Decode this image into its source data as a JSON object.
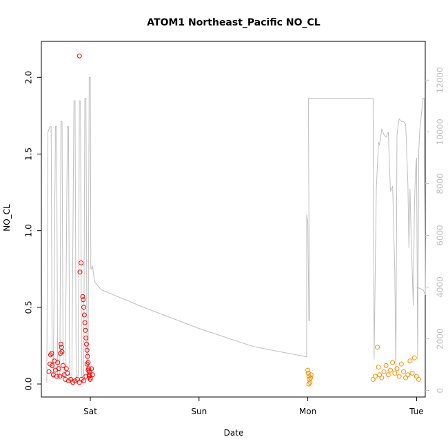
{
  "chart_data": {
    "type": "scatter",
    "title": "ATOM1 Northeast_Pacific NO_CL",
    "xlabel": "Date",
    "ylabel": "NO_CL",
    "x_ticks": [
      "Sat",
      "Sun",
      "Mon",
      "Tue"
    ],
    "y_ticks": [
      "0.0",
      "0.5",
      "1.0",
      "1.5",
      "2.0"
    ],
    "y_tick_values": [
      0,
      0.5,
      1,
      1.5,
      2
    ],
    "y_range": [
      -0.085,
      2.235
    ],
    "right_axis_ticks": [
      "0",
      "2000",
      "4000",
      "6000",
      "8000",
      "10000",
      "12000"
    ],
    "right_axis_tick_values": [
      0,
      2000,
      4000,
      6000,
      8000,
      10000,
      12000
    ],
    "right_axis_range": [
      -250,
      13500
    ],
    "x_day_range": [
      -0.45,
      3.08
    ],
    "grid": false,
    "legend": "none",
    "colors": {
      "series_1": "#ff0000",
      "series_2": "#ff8c00",
      "line": "#bebebe",
      "right_axis": "#bebebe"
    },
    "series": [
      {
        "color": "#ff0000",
        "points": [
          [
            -0.38,
            0.08
          ],
          [
            -0.37,
            0.13
          ],
          [
            -0.365,
            0.19
          ],
          [
            -0.355,
            0.2
          ],
          [
            -0.35,
            0.12
          ],
          [
            -0.34,
            0.06
          ],
          [
            -0.33,
            0.15
          ],
          [
            -0.32,
            0.09
          ],
          [
            -0.31,
            0.05
          ],
          [
            -0.3,
            0.14
          ],
          [
            -0.29,
            0.1
          ],
          [
            -0.28,
            0.05
          ],
          [
            -0.275,
            0.2
          ],
          [
            -0.27,
            0.26
          ],
          [
            -0.265,
            0.24
          ],
          [
            -0.26,
            0.21
          ],
          [
            -0.25,
            0.12
          ],
          [
            -0.24,
            0.06
          ],
          [
            -0.23,
            0.03
          ],
          [
            -0.22,
            0.1
          ],
          [
            -0.21,
            0.07
          ],
          [
            -0.2,
            0.02
          ],
          [
            -0.18,
            0.03
          ],
          [
            -0.16,
            0.01
          ],
          [
            -0.14,
            0.02
          ],
          [
            -0.12,
            0.03
          ],
          [
            -0.1,
            0.01
          ],
          [
            -0.08,
            0.03
          ],
          [
            -0.06,
            0.02
          ],
          [
            -0.04,
            0.05
          ],
          [
            -0.03,
            0.13
          ],
          [
            -0.02,
            0.09
          ],
          [
            -0.01,
            0.05
          ],
          [
            0.0,
            0.03
          ],
          [
            0.01,
            0.1
          ],
          [
            0.02,
            0.06
          ],
          [
            -0.1,
            2.14
          ],
          [
            -0.085,
            0.79
          ],
          [
            -0.095,
            0.73
          ],
          [
            -0.07,
            0.57
          ],
          [
            -0.065,
            0.55
          ],
          [
            -0.06,
            0.5
          ],
          [
            -0.055,
            0.45
          ],
          [
            -0.05,
            0.4
          ],
          [
            -0.045,
            0.35
          ],
          [
            -0.04,
            0.3
          ],
          [
            -0.035,
            0.26
          ],
          [
            -0.03,
            0.22
          ],
          [
            -0.025,
            0.18
          ],
          [
            -0.02,
            0.14
          ],
          [
            -0.015,
            0.1
          ],
          [
            -0.01,
            0.08
          ],
          [
            -0.005,
            0.06
          ],
          [
            0.0,
            0.04
          ]
        ]
      },
      {
        "color": "#ff8c00",
        "points": [
          [
            2.0,
            0.09
          ],
          [
            2.005,
            0.07
          ],
          [
            2.01,
            0.05
          ],
          [
            2.015,
            0.03
          ],
          [
            2.02,
            0.01
          ],
          [
            2.025,
            0.04
          ],
          [
            2.03,
            0.06
          ],
          [
            2.01,
            0.0
          ],
          [
            2.6,
            0.03
          ],
          [
            2.62,
            0.05
          ],
          [
            2.64,
            0.24
          ],
          [
            2.65,
            0.11
          ],
          [
            2.66,
            0.06
          ],
          [
            2.68,
            0.04
          ],
          [
            2.7,
            0.08
          ],
          [
            2.72,
            0.12
          ],
          [
            2.74,
            0.06
          ],
          [
            2.76,
            0.09
          ],
          [
            2.78,
            0.14
          ],
          [
            2.8,
            0.07
          ],
          [
            2.82,
            0.1
          ],
          [
            2.84,
            0.05
          ],
          [
            2.86,
            0.13
          ],
          [
            2.88,
            0.08
          ],
          [
            2.9,
            0.04
          ],
          [
            2.92,
            0.06
          ],
          [
            2.94,
            0.15
          ],
          [
            2.96,
            0.07
          ],
          [
            2.98,
            0.17
          ],
          [
            3.0,
            0.05
          ],
          [
            3.02,
            0.03
          ]
        ]
      }
    ],
    "line_series": {
      "color": "#bebebe",
      "axis": "right",
      "points": [
        [
          -0.4,
          300
        ],
        [
          -0.39,
          10000
        ],
        [
          -0.37,
          10200
        ],
        [
          -0.36,
          10200
        ],
        [
          -0.35,
          600
        ],
        [
          -0.34,
          500
        ],
        [
          -0.32,
          10200
        ],
        [
          -0.31,
          10200
        ],
        [
          -0.3,
          600
        ],
        [
          -0.28,
          500
        ],
        [
          -0.27,
          10400
        ],
        [
          -0.26,
          10400
        ],
        [
          -0.25,
          500
        ],
        [
          -0.23,
          800
        ],
        [
          -0.21,
          10200
        ],
        [
          -0.2,
          10200
        ],
        [
          -0.19,
          500
        ],
        [
          -0.17,
          400
        ],
        [
          -0.15,
          11200
        ],
        [
          -0.14,
          11200
        ],
        [
          -0.13,
          500
        ],
        [
          -0.11,
          600
        ],
        [
          -0.1,
          11200
        ],
        [
          -0.09,
          11200
        ],
        [
          -0.08,
          500
        ],
        [
          -0.06,
          600
        ],
        [
          -0.05,
          11300
        ],
        [
          -0.04,
          11300
        ],
        [
          -0.03,
          500
        ],
        [
          -0.02,
          600
        ],
        [
          -0.01,
          12100
        ],
        [
          0.0,
          12100
        ],
        [
          0.005,
          4700
        ],
        [
          0.01,
          4700
        ],
        [
          0.02,
          4800
        ],
        [
          0.04,
          4200
        ],
        [
          0.1,
          3900
        ],
        [
          0.5,
          3200
        ],
        [
          1.0,
          2400
        ],
        [
          1.5,
          1700
        ],
        [
          1.99,
          1300
        ],
        [
          1.99,
          6800
        ],
        [
          2.0,
          6500
        ],
        [
          2.01,
          2700
        ],
        [
          2.015,
          2700
        ],
        [
          2.005,
          11300
        ],
        [
          2.3,
          11300
        ],
        [
          2.6,
          11300
        ],
        [
          2.61,
          1200
        ],
        [
          2.63,
          7800
        ],
        [
          2.65,
          9600
        ],
        [
          2.66,
          9500
        ],
        [
          2.68,
          10100
        ],
        [
          2.7,
          9900
        ],
        [
          2.72,
          9800
        ],
        [
          2.74,
          10000
        ],
        [
          2.76,
          7700
        ],
        [
          2.78,
          7900
        ],
        [
          2.8,
          4600
        ],
        [
          2.81,
          800
        ],
        [
          2.82,
          9900
        ],
        [
          2.84,
          10500
        ],
        [
          2.86,
          10400
        ],
        [
          2.88,
          10400
        ],
        [
          2.9,
          10300
        ],
        [
          2.92,
          8000
        ],
        [
          2.93,
          5500
        ],
        [
          2.94,
          7800
        ],
        [
          2.95,
          6000
        ],
        [
          2.97,
          3300
        ],
        [
          2.98,
          7000
        ],
        [
          2.99,
          8500
        ],
        [
          3.0,
          9000
        ],
        [
          3.01,
          1200
        ],
        [
          3.02,
          9200
        ],
        [
          3.03,
          10100
        ],
        [
          3.04,
          10500
        ],
        [
          3.06,
          11300
        ],
        [
          3.07,
          11300
        ],
        [
          3.08,
          3700
        ],
        [
          3.06,
          3900
        ],
        [
          3.0,
          4000
        ]
      ]
    }
  }
}
